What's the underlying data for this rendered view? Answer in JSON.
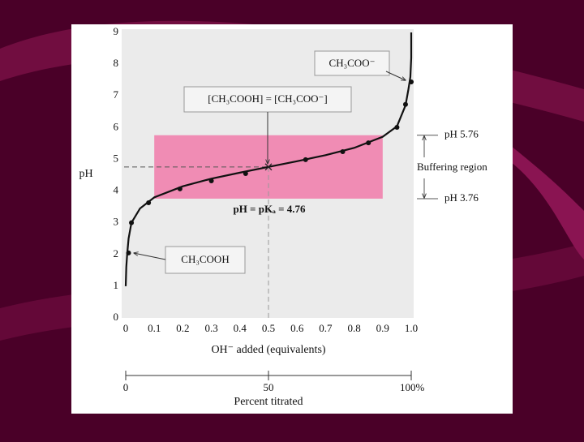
{
  "chart_data": {
    "type": "line",
    "ylabel": "pH",
    "xlabel": "OH⁻ added (equivalents)",
    "xlim": [
      0,
      1.0
    ],
    "xticks": [
      0,
      0.1,
      0.2,
      0.3,
      0.4,
      0.5,
      0.6,
      0.7,
      0.8,
      0.9,
      {
        "value": 1.0,
        "label": "1.0"
      }
    ],
    "ylim": [
      0,
      9
    ],
    "yticks": [
      0,
      1,
      2,
      3,
      4,
      5,
      6,
      7,
      8,
      9
    ],
    "x2label": "Percent titrated",
    "x2lim": [
      0,
      100
    ],
    "x2ticks": [
      0,
      50,
      {
        "value": 100,
        "label": "100%"
      }
    ],
    "curve": {
      "color": "#111111",
      "x": [
        0,
        0.002,
        0.005,
        0.01,
        0.02,
        0.05,
        0.1,
        0.2,
        0.3,
        0.4,
        0.5,
        0.6,
        0.7,
        0.8,
        0.9,
        0.95,
        0.98,
        0.99,
        0.997,
        1.0,
        1.0
      ],
      "y": [
        1.0,
        1.6,
        2.0,
        2.5,
        3.0,
        3.45,
        3.8,
        4.15,
        4.39,
        4.58,
        4.76,
        4.94,
        5.13,
        5.36,
        5.71,
        6.04,
        6.7,
        7.2,
        7.6,
        8.2,
        9.0
      ]
    },
    "points": {
      "color": "#111111",
      "x": [
        0.01,
        0.02,
        0.08,
        0.19,
        0.3,
        0.42,
        0.63,
        0.76,
        0.85,
        0.95,
        0.98,
        1.0
      ],
      "y": [
        2.05,
        3.0,
        3.63,
        4.07,
        4.32,
        4.55,
        4.99,
        5.24,
        5.52,
        6.01,
        6.73,
        7.44
      ]
    },
    "pka": {
      "value": 4.76,
      "x": 0.5,
      "label": "pH = pKₐ = 4.76"
    },
    "buffer_region": {
      "label": "Buffering region",
      "color": "#f08cb4",
      "x": [
        0.1,
        0.9
      ],
      "ph": [
        {
          "value": 3.76,
          "label": "pH 3.76"
        },
        {
          "value": 5.76,
          "label": "pH 5.76"
        }
      ]
    },
    "annotations": {
      "midpoint": "[CH₃COOH] = [CH₃COO⁻]",
      "base": "CH₃COO⁻",
      "acid": "CH₃COOH"
    }
  }
}
